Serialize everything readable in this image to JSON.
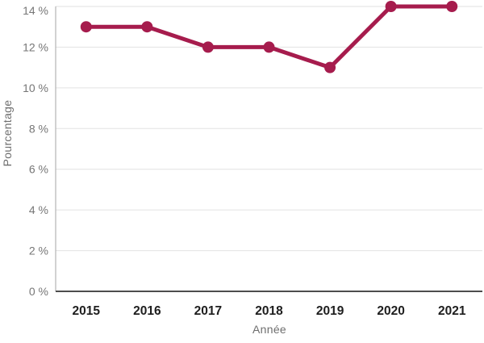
{
  "chart_data": {
    "type": "line",
    "categories": [
      "2015",
      "2016",
      "2017",
      "2018",
      "2019",
      "2020",
      "2021"
    ],
    "values": [
      13,
      13,
      12,
      12,
      11,
      14,
      14
    ],
    "xlabel": "Année",
    "ylabel": "Pourcentage",
    "ylim": [
      0,
      14
    ],
    "yticks": [
      0,
      2,
      4,
      6,
      8,
      10,
      12,
      14
    ],
    "ytick_suffix": " %",
    "grid": true,
    "legend": "none",
    "marker": "circle",
    "colors": {
      "line": "#A61C4D",
      "point": "#A61C4D",
      "grid": "#E2E2E2",
      "y_axis_line": "#A6A6A6",
      "x_axis_line": "#4D4D4D",
      "y_tick_label": "#767676",
      "x_tick_label": "#1E1E1E",
      "axis_title": "#6E6E6E",
      "background": "#FFFFFF"
    }
  }
}
